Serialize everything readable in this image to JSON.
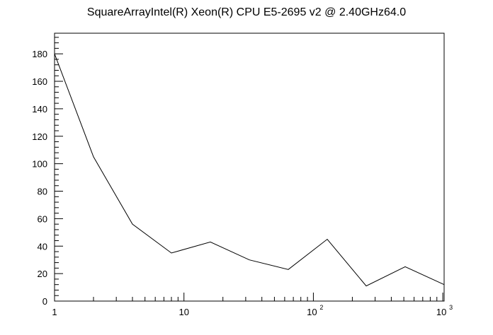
{
  "chart_data": {
    "type": "line",
    "title": "SquareArrayIntel(R) Xeon(R) CPU E5-2695 v2 @ 2.40GHz64.0",
    "xlabel": "",
    "ylabel": "",
    "x_scale": "log",
    "xlim": [
      1,
      1024
    ],
    "ylim": [
      0,
      195
    ],
    "grid": false,
    "x_tick_labels": [
      {
        "value": 1,
        "base": "1",
        "exp": ""
      },
      {
        "value": 10,
        "base": "10",
        "exp": ""
      },
      {
        "value": 100,
        "base": "10",
        "exp": "2"
      },
      {
        "value": 1000,
        "base": "10",
        "exp": "3"
      }
    ],
    "y_ticks": [
      0,
      20,
      40,
      60,
      80,
      100,
      120,
      140,
      160,
      180
    ],
    "series": [
      {
        "color": "#000000",
        "x": [
          1,
          2,
          4,
          8,
          16,
          32,
          64,
          128,
          256,
          512,
          1024
        ],
        "y": [
          180,
          105,
          56,
          35,
          43,
          30,
          23,
          45,
          11,
          25,
          12
        ]
      }
    ]
  }
}
